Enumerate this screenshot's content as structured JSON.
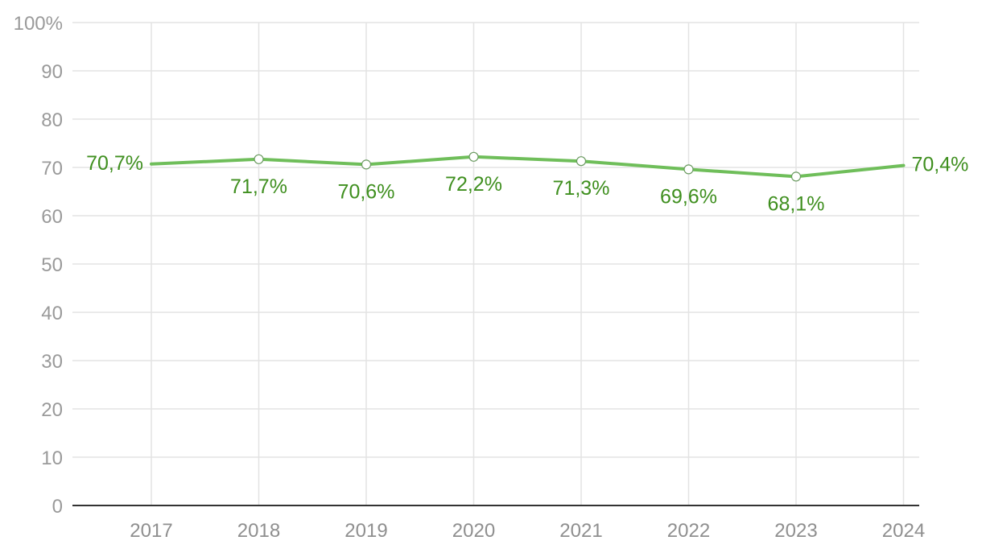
{
  "chart_data": {
    "type": "line",
    "title": "",
    "xlabel": "",
    "ylabel": "",
    "x": [
      "2017",
      "2018",
      "2019",
      "2020",
      "2021",
      "2022",
      "2023",
      "2024"
    ],
    "series": [
      {
        "values": [
          70.7,
          71.7,
          70.6,
          72.2,
          71.3,
          69.6,
          68.1,
          70.4
        ],
        "labels": [
          "70,7%",
          "71,7%",
          "70,6%",
          "72,2%",
          "71,3%",
          "69,6%",
          "68,1%",
          "70,4%"
        ]
      }
    ],
    "ylim": [
      0,
      100
    ],
    "y_ticks": [
      "0",
      "10",
      "20",
      "30",
      "40",
      "50",
      "60",
      "70",
      "80",
      "90",
      "100%"
    ],
    "grid": true,
    "legend": "none",
    "colors": {
      "line": "#6fbe5a",
      "label": "#3f8f1f",
      "grid": "#e3e3e3",
      "axis": "#333333",
      "tick_text": "#9a9a9a"
    }
  }
}
